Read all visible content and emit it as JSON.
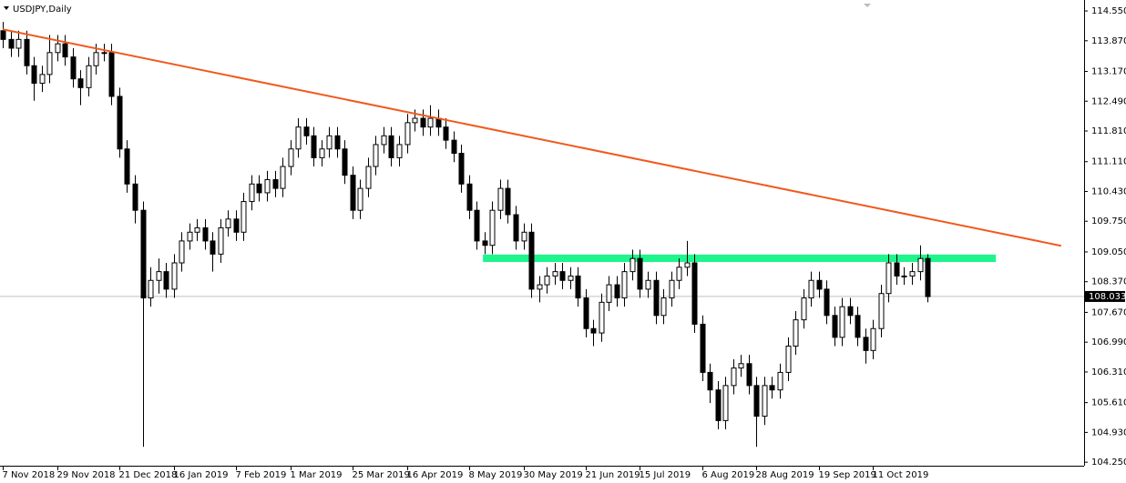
{
  "chart_data": {
    "type": "candlestick",
    "title": "USDJPY,Daily",
    "categories": [
      "7 Nov 2018",
      null,
      null,
      null,
      null,
      null,
      null,
      "29 Nov 2018",
      null,
      null,
      null,
      null,
      null,
      null,
      null,
      "21 Dec 2018",
      null,
      null,
      null,
      null,
      null,
      null,
      "16 Jan 2019",
      null,
      null,
      null,
      null,
      null,
      null,
      null,
      "7 Feb 2019",
      null,
      null,
      null,
      null,
      null,
      null,
      "1 Mar 2019",
      null,
      null,
      null,
      null,
      null,
      null,
      null,
      "25 Mar 2019",
      null,
      null,
      null,
      null,
      null,
      null,
      "16 Apr 2019",
      null,
      null,
      null,
      null,
      null,
      null,
      null,
      "8 May 2019",
      null,
      null,
      null,
      null,
      null,
      null,
      "30 May 2019",
      null,
      null,
      null,
      null,
      null,
      null,
      null,
      "21 Jun 2019",
      null,
      null,
      null,
      null,
      null,
      null,
      "15 Jul 2019",
      null,
      null,
      null,
      null,
      null,
      null,
      null,
      "6 Aug 2019",
      null,
      null,
      null,
      null,
      null,
      null,
      "28 Aug 2019",
      null,
      null,
      null,
      null,
      null,
      null,
      null,
      "19 Sep 2019",
      null,
      null,
      null,
      null,
      null,
      null,
      "11 Oct 2019",
      null,
      null,
      null,
      null,
      null,
      null,
      null
    ],
    "open": [
      114.1,
      113.9,
      113.7,
      113.9,
      113.3,
      112.9,
      113.1,
      113.6,
      113.8,
      113.5,
      113.0,
      112.8,
      113.3,
      113.6,
      113.6,
      112.6,
      111.4,
      110.6,
      110.0,
      108.0,
      108.4,
      108.6,
      108.2,
      108.8,
      109.3,
      109.5,
      109.6,
      109.3,
      109.0,
      109.6,
      109.8,
      109.5,
      110.2,
      110.6,
      110.4,
      110.7,
      110.5,
      111.0,
      111.4,
      111.9,
      111.7,
      111.2,
      111.4,
      111.7,
      111.4,
      110.8,
      110.0,
      110.5,
      111.0,
      111.5,
      111.7,
      111.2,
      111.5,
      112.0,
      112.1,
      111.9,
      112.1,
      111.9,
      111.6,
      111.3,
      110.6,
      110.0,
      109.3,
      109.2,
      110.0,
      110.5,
      109.9,
      109.3,
      109.5,
      108.2,
      108.3,
      108.5,
      108.6,
      108.4,
      108.5,
      108.0,
      107.3,
      107.2,
      107.9,
      108.3,
      108.0,
      108.6,
      108.9,
      108.2,
      108.4,
      107.6,
      108.0,
      108.4,
      108.7,
      108.8,
      107.4,
      106.3,
      105.9,
      105.2,
      106.0,
      106.4,
      106.5,
      106.0,
      105.3,
      106.0,
      105.9,
      106.3,
      106.9,
      107.5,
      108.0,
      108.4,
      108.2,
      107.6,
      107.1,
      107.8,
      107.6,
      107.1,
      106.8,
      107.3,
      108.1,
      108.8,
      108.5,
      108.5,
      108.6,
      108.9
    ],
    "high": [
      114.3,
      114.1,
      114.1,
      114.1,
      113.5,
      113.3,
      114.0,
      114.0,
      114.0,
      113.7,
      113.2,
      113.5,
      113.8,
      113.8,
      113.8,
      112.8,
      111.6,
      110.8,
      110.2,
      108.7,
      108.9,
      108.8,
      109.0,
      109.5,
      109.7,
      109.8,
      109.8,
      109.5,
      109.8,
      110.0,
      110.0,
      110.4,
      110.8,
      110.8,
      110.9,
      110.9,
      111.2,
      111.6,
      112.1,
      112.1,
      111.9,
      111.6,
      111.9,
      111.9,
      111.6,
      111.0,
      110.7,
      111.2,
      111.7,
      111.9,
      111.9,
      111.7,
      112.2,
      112.3,
      112.3,
      112.4,
      112.3,
      112.1,
      111.8,
      111.5,
      110.8,
      110.2,
      109.5,
      110.2,
      110.7,
      110.7,
      110.1,
      109.7,
      109.7,
      108.5,
      108.7,
      108.8,
      108.8,
      108.7,
      108.7,
      108.2,
      107.5,
      108.1,
      108.5,
      108.5,
      108.8,
      109.1,
      109.1,
      108.6,
      108.6,
      108.2,
      108.6,
      108.9,
      109.3,
      109.0,
      107.6,
      106.5,
      106.1,
      106.2,
      106.6,
      106.7,
      106.7,
      106.2,
      106.2,
      106.2,
      106.5,
      107.1,
      107.7,
      108.2,
      108.6,
      108.6,
      108.4,
      107.8,
      108.0,
      108.0,
      107.8,
      107.3,
      107.5,
      108.3,
      109.0,
      109.0,
      108.7,
      108.8,
      109.2,
      109.0
    ],
    "low": [
      113.7,
      113.5,
      113.5,
      113.1,
      112.5,
      112.7,
      112.9,
      113.4,
      113.3,
      112.8,
      112.4,
      112.6,
      113.1,
      113.4,
      112.4,
      111.2,
      110.4,
      109.7,
      104.6,
      107.8,
      108.1,
      108.0,
      108.0,
      108.6,
      109.1,
      109.3,
      109.1,
      108.6,
      108.8,
      109.4,
      109.3,
      109.3,
      110.0,
      110.2,
      110.2,
      110.3,
      110.3,
      110.8,
      111.2,
      111.5,
      111.0,
      111.0,
      111.2,
      111.2,
      110.6,
      109.8,
      109.8,
      110.3,
      110.8,
      111.3,
      111.0,
      111.0,
      111.3,
      111.8,
      111.7,
      111.7,
      111.7,
      111.4,
      111.1,
      110.4,
      109.8,
      109.1,
      109.0,
      109.0,
      109.8,
      109.7,
      109.1,
      109.1,
      108.0,
      107.9,
      108.1,
      108.3,
      108.2,
      108.2,
      107.8,
      107.1,
      106.9,
      107.0,
      107.7,
      107.8,
      107.8,
      108.4,
      108.0,
      108.0,
      107.4,
      107.4,
      107.8,
      108.2,
      108.5,
      107.2,
      106.1,
      105.6,
      105.0,
      105.0,
      105.8,
      106.2,
      105.8,
      104.6,
      105.1,
      105.7,
      105.7,
      106.1,
      106.7,
      107.3,
      107.8,
      108.0,
      107.4,
      106.9,
      106.9,
      107.4,
      106.9,
      106.5,
      106.6,
      107.1,
      107.9,
      108.3,
      108.3,
      108.3,
      108.4,
      107.9
    ],
    "close": [
      113.9,
      113.7,
      113.9,
      113.3,
      112.9,
      113.1,
      113.6,
      113.8,
      113.5,
      113.0,
      112.8,
      113.3,
      113.6,
      113.6,
      112.6,
      111.4,
      110.6,
      110.0,
      108.0,
      108.4,
      108.6,
      108.2,
      108.8,
      109.3,
      109.5,
      109.6,
      109.3,
      109.0,
      109.6,
      109.8,
      109.5,
      110.2,
      110.6,
      110.4,
      110.7,
      110.5,
      111.0,
      111.4,
      111.9,
      111.7,
      111.2,
      111.4,
      111.7,
      111.4,
      110.8,
      110.0,
      110.5,
      111.0,
      111.5,
      111.7,
      111.2,
      111.5,
      112.0,
      112.1,
      111.9,
      112.1,
      111.9,
      111.6,
      111.3,
      110.6,
      110.0,
      109.3,
      109.2,
      110.0,
      110.5,
      109.9,
      109.3,
      109.5,
      108.2,
      108.3,
      108.5,
      108.6,
      108.4,
      108.5,
      108.0,
      107.3,
      107.2,
      107.9,
      108.3,
      108.0,
      108.6,
      108.9,
      108.2,
      108.4,
      107.6,
      108.0,
      108.4,
      108.7,
      108.8,
      107.4,
      106.3,
      105.9,
      105.2,
      106.0,
      106.4,
      106.5,
      106.0,
      105.3,
      106.0,
      105.9,
      106.3,
      106.9,
      107.5,
      108.0,
      108.4,
      108.2,
      107.6,
      107.1,
      107.8,
      107.6,
      107.1,
      106.8,
      107.3,
      108.1,
      108.8,
      108.5,
      108.5,
      108.6,
      108.9,
      108.03
    ],
    "up_color": "#ffffff",
    "down_color": "#000000",
    "outline_color": "#000000",
    "ylim": [
      104.17,
      114.8
    ],
    "yticks": [
      {
        "value": 114.55,
        "label": "114.550"
      },
      {
        "value": 113.87,
        "label": "113.870"
      },
      {
        "value": 113.17,
        "label": "113.170"
      },
      {
        "value": 112.49,
        "label": "112.490"
      },
      {
        "value": 111.81,
        "label": "111.810"
      },
      {
        "value": 111.11,
        "label": "111.110"
      },
      {
        "value": 110.43,
        "label": "110.430"
      },
      {
        "value": 109.75,
        "label": "109.750"
      },
      {
        "value": 109.05,
        "label": "109.050"
      },
      {
        "value": 108.37,
        "label": "108.370"
      },
      {
        "value": 107.67,
        "label": "107.670"
      },
      {
        "value": 106.99,
        "label": "106.990"
      },
      {
        "value": 106.31,
        "label": "106.310"
      },
      {
        "value": 105.61,
        "label": "105.610"
      },
      {
        "value": 104.93,
        "label": "104.930"
      },
      {
        "value": 104.25,
        "label": "104.250"
      }
    ],
    "current_price": 108.033,
    "trendline": {
      "x": [
        0,
        136.2
      ],
      "y": [
        114.13,
        109.19
      ],
      "color": "#f05a1e"
    },
    "zone": {
      "x": [
        61.8,
        127.8
      ],
      "y": [
        108.82,
        108.99
      ],
      "color": "#1ef58c"
    }
  }
}
